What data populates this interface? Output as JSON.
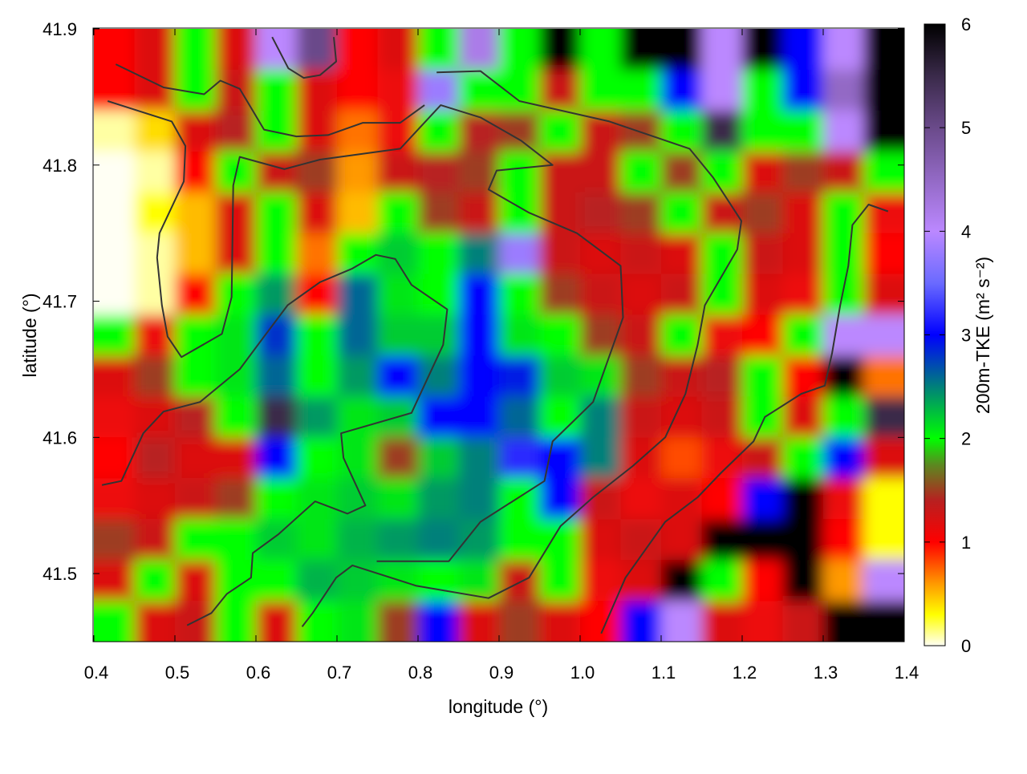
{
  "chart_data": {
    "type": "heatmap",
    "title": "",
    "xlabel": "longitude (°)",
    "ylabel": "latitude (°)",
    "colorbar_label": "200m-TKE (m² s⁻²)",
    "xlim": [
      0.4,
      1.4
    ],
    "ylim": [
      41.45,
      41.9
    ],
    "zlim": [
      0,
      6
    ],
    "x_ticks": [
      "0.4",
      "0.5",
      "0.6",
      "0.7",
      "0.8",
      "0.9",
      "1.0",
      "1.1",
      "1.2",
      "1.3",
      "1.4"
    ],
    "y_ticks": [
      "41.5",
      "41.6",
      "41.7",
      "41.8",
      "41.9"
    ],
    "colorbar_ticks": [
      "0",
      "1",
      "2",
      "3",
      "4",
      "5",
      "6"
    ],
    "grid": false,
    "palette": [
      [
        0,
        "#fffff4"
      ],
      [
        0.3,
        "#ffff00"
      ],
      [
        0.6,
        "#ff9900"
      ],
      [
        1.0,
        "#ff0000"
      ],
      [
        1.4,
        "#b82020"
      ],
      [
        1.75,
        "#5a8a20"
      ],
      [
        2.0,
        "#00ff00"
      ],
      [
        2.5,
        "#00807a"
      ],
      [
        3.0,
        "#0000ff"
      ],
      [
        3.5,
        "#6a6aff"
      ],
      [
        4.0,
        "#bb88ff"
      ],
      [
        5.0,
        "#6a4a8a"
      ],
      [
        5.5,
        "#3a2a4a"
      ],
      [
        6.0,
        "#000000"
      ]
    ],
    "lon_centers": [
      0.425,
      0.475,
      0.525,
      0.575,
      0.625,
      0.675,
      0.725,
      0.775,
      0.825,
      0.875,
      0.925,
      0.975,
      1.025,
      1.075,
      1.125,
      1.175,
      1.225,
      1.275,
      1.325,
      1.375
    ],
    "lat_centers": [
      41.885,
      41.855,
      41.825,
      41.795,
      41.765,
      41.735,
      41.705,
      41.675,
      41.645,
      41.615,
      41.585,
      41.555,
      41.525,
      41.495,
      41.465
    ],
    "values": [
      [
        1.0,
        1.2,
        2.0,
        1.2,
        4.0,
        5.0,
        1.0,
        1.2,
        2.0,
        4.2,
        2.0,
        6.0,
        2.0,
        6.0,
        6.0,
        4.0,
        6.0,
        3.0,
        4.0,
        6.0
      ],
      [
        1.0,
        1.2,
        2.0,
        1.3,
        2.0,
        1.2,
        1.0,
        1.1,
        3.8,
        2.0,
        2.0,
        1.3,
        2.0,
        2.0,
        3.0,
        4.0,
        2.0,
        3.0,
        4.5,
        6.0
      ],
      [
        0.1,
        0.4,
        1.2,
        1.4,
        2.0,
        1.2,
        0.7,
        1.1,
        2.0,
        1.4,
        1.5,
        2.0,
        1.3,
        1.5,
        2.0,
        5.5,
        2.0,
        2.0,
        4.0,
        6.0
      ],
      [
        0.0,
        0.1,
        1.0,
        2.0,
        1.3,
        1.5,
        0.6,
        1.3,
        1.4,
        1.5,
        2.0,
        1.3,
        1.3,
        2.0,
        1.5,
        2.0,
        1.2,
        1.5,
        1.3,
        2.0
      ],
      [
        0.0,
        0.3,
        0.5,
        1.2,
        2.0,
        1.2,
        0.5,
        2.0,
        1.5,
        1.3,
        2.0,
        1.3,
        1.4,
        1.5,
        2.0,
        1.3,
        1.5,
        1.2,
        2.0,
        1.1
      ],
      [
        0.0,
        0.1,
        0.5,
        1.2,
        2.0,
        0.7,
        2.0,
        2.2,
        2.0,
        2.5,
        3.8,
        1.3,
        1.2,
        1.3,
        1.2,
        2.0,
        1.3,
        1.2,
        2.0,
        1.0
      ],
      [
        0.0,
        0.1,
        1.0,
        2.0,
        2.4,
        1.0,
        2.6,
        2.1,
        2.0,
        3.0,
        2.0,
        1.5,
        1.3,
        1.2,
        1.3,
        2.0,
        1.2,
        1.1,
        2.0,
        1.2
      ],
      [
        2.0,
        1.1,
        2.0,
        2.1,
        2.8,
        2.0,
        2.6,
        2.2,
        2.2,
        3.0,
        2.1,
        2.0,
        1.5,
        1.3,
        2.0,
        1.1,
        1.0,
        2.0,
        4.0,
        4.0
      ],
      [
        1.2,
        1.5,
        2.0,
        2.1,
        2.6,
        2.0,
        2.4,
        3.0,
        2.5,
        3.0,
        2.9,
        2.2,
        2.1,
        1.5,
        1.3,
        1.4,
        2.0,
        1.0,
        6.0,
        0.7
      ],
      [
        1.1,
        1.2,
        1.4,
        2.0,
        5.5,
        2.4,
        2.1,
        2.2,
        3.0,
        3.0,
        2.6,
        2.0,
        2.5,
        1.3,
        1.2,
        1.3,
        2.0,
        1.2,
        2.0,
        5.5
      ],
      [
        1.0,
        1.4,
        1.2,
        1.2,
        3.0,
        2.0,
        2.1,
        1.5,
        2.2,
        2.5,
        3.2,
        3.0,
        2.5,
        1.2,
        0.8,
        1.1,
        1.3,
        2.0,
        3.0,
        1.2
      ],
      [
        1.1,
        1.2,
        1.3,
        1.5,
        2.0,
        2.1,
        2.2,
        2.1,
        2.4,
        2.5,
        2.0,
        3.0,
        1.3,
        1.1,
        1.2,
        1.0,
        3.0,
        6.0,
        1.1,
        0.3
      ],
      [
        1.5,
        1.3,
        2.0,
        2.0,
        2.2,
        2.1,
        2.3,
        2.4,
        2.5,
        2.4,
        2.0,
        2.0,
        1.2,
        1.3,
        1.2,
        6.0,
        6.0,
        6.0,
        1.0,
        0.3
      ],
      [
        1.2,
        2.0,
        1.2,
        2.0,
        2.0,
        2.3,
        2.2,
        2.1,
        2.0,
        2.1,
        1.3,
        2.0,
        1.1,
        1.2,
        6.0,
        2.0,
        1.0,
        6.0,
        0.6,
        4.0
      ],
      [
        2.0,
        1.2,
        1.3,
        2.0,
        1.2,
        2.0,
        2.1,
        1.5,
        3.0,
        1.2,
        1.5,
        1.2,
        1.0,
        3.0,
        4.0,
        1.2,
        1.1,
        1.3,
        6.0,
        6.0
      ]
    ],
    "boundary_color": "#333333",
    "boundaries": [
      [
        [
          0.417,
          41.847
        ],
        [
          0.496,
          41.832
        ],
        [
          0.513,
          41.814
        ],
        [
          0.511,
          41.788
        ],
        [
          0.481,
          41.75
        ],
        [
          0.478,
          41.732
        ],
        [
          0.484,
          41.697
        ],
        [
          0.491,
          41.674
        ],
        [
          0.508,
          41.659
        ],
        [
          0.558,
          41.676
        ],
        [
          0.57,
          41.703
        ],
        [
          0.572,
          41.785
        ],
        [
          0.58,
          41.806
        ],
        [
          0.635,
          41.797
        ],
        [
          0.679,
          41.804
        ],
        [
          0.778,
          41.812
        ],
        [
          0.828,
          41.844
        ],
        [
          0.877,
          41.835
        ],
        [
          0.927,
          41.818
        ],
        [
          0.966,
          41.8
        ],
        [
          0.897,
          41.796
        ],
        [
          0.887,
          41.782
        ],
        [
          0.937,
          41.765
        ],
        [
          0.996,
          41.75
        ],
        [
          1.05,
          41.726
        ],
        [
          1.053,
          41.688
        ],
        [
          1.016,
          41.626
        ],
        [
          0.966,
          41.597
        ],
        [
          0.956,
          41.568
        ],
        [
          0.877,
          41.538
        ],
        [
          0.838,
          41.509
        ],
        [
          0.749,
          41.509
        ]
      ],
      [
        [
          0.41,
          41.565
        ],
        [
          0.434,
          41.568
        ],
        [
          0.461,
          41.603
        ],
        [
          0.486,
          41.619
        ],
        [
          0.531,
          41.626
        ],
        [
          0.58,
          41.65
        ],
        [
          0.61,
          41.674
        ],
        [
          0.639,
          41.697
        ],
        [
          0.679,
          41.714
        ],
        [
          0.719,
          41.724
        ],
        [
          0.748,
          41.734
        ],
        [
          0.772,
          41.731
        ],
        [
          0.792,
          41.712
        ],
        [
          0.836,
          41.694
        ],
        [
          0.831,
          41.668
        ],
        [
          0.792,
          41.618
        ],
        [
          0.705,
          41.603
        ],
        [
          0.708,
          41.585
        ],
        [
          0.735,
          41.55
        ],
        [
          0.713,
          41.544
        ],
        [
          0.673,
          41.553
        ],
        [
          0.628,
          41.529
        ],
        [
          0.596,
          41.515
        ],
        [
          0.594,
          41.497
        ],
        [
          0.564,
          41.485
        ],
        [
          0.545,
          41.471
        ],
        [
          0.515,
          41.462
        ]
      ],
      [
        [
          1.026,
          41.456
        ],
        [
          1.056,
          41.497
        ],
        [
          1.105,
          41.538
        ],
        [
          1.145,
          41.556
        ],
        [
          1.174,
          41.574
        ],
        [
          1.214,
          41.597
        ],
        [
          1.228,
          41.615
        ],
        [
          1.273,
          41.632
        ],
        [
          1.302,
          41.638
        ],
        [
          1.311,
          41.662
        ],
        [
          1.321,
          41.697
        ],
        [
          1.331,
          41.726
        ],
        [
          1.336,
          41.756
        ],
        [
          1.356,
          41.771
        ],
        [
          1.38,
          41.766
        ]
      ],
      [
        [
          0.823,
          41.868
        ],
        [
          0.877,
          41.869
        ],
        [
          0.925,
          41.847
        ],
        [
          1.036,
          41.832
        ],
        [
          1.135,
          41.812
        ],
        [
          1.164,
          41.791
        ],
        [
          1.199,
          41.759
        ],
        [
          1.194,
          41.738
        ],
        [
          1.154,
          41.697
        ],
        [
          1.145,
          41.668
        ],
        [
          1.13,
          41.632
        ],
        [
          1.105,
          41.6
        ],
        [
          1.065,
          41.579
        ],
        [
          1.016,
          41.556
        ],
        [
          0.976,
          41.535
        ],
        [
          0.937,
          41.497
        ],
        [
          0.887,
          41.482
        ],
        [
          0.798,
          41.491
        ],
        [
          0.719,
          41.506
        ],
        [
          0.699,
          41.497
        ],
        [
          0.67,
          41.471
        ],
        [
          0.657,
          41.461
        ]
      ],
      [
        [
          0.62,
          41.894
        ],
        [
          0.64,
          41.871
        ],
        [
          0.659,
          41.864
        ],
        [
          0.679,
          41.866
        ],
        [
          0.699,
          41.876
        ],
        [
          0.696,
          41.894
        ]
      ],
      [
        [
          0.427,
          41.874
        ],
        [
          0.486,
          41.857
        ],
        [
          0.536,
          41.852
        ],
        [
          0.556,
          41.862
        ],
        [
          0.58,
          41.856
        ],
        [
          0.61,
          41.826
        ],
        [
          0.65,
          41.821
        ],
        [
          0.689,
          41.822
        ],
        [
          0.732,
          41.831
        ],
        [
          0.778,
          41.831
        ],
        [
          0.808,
          41.844
        ]
      ]
    ]
  }
}
